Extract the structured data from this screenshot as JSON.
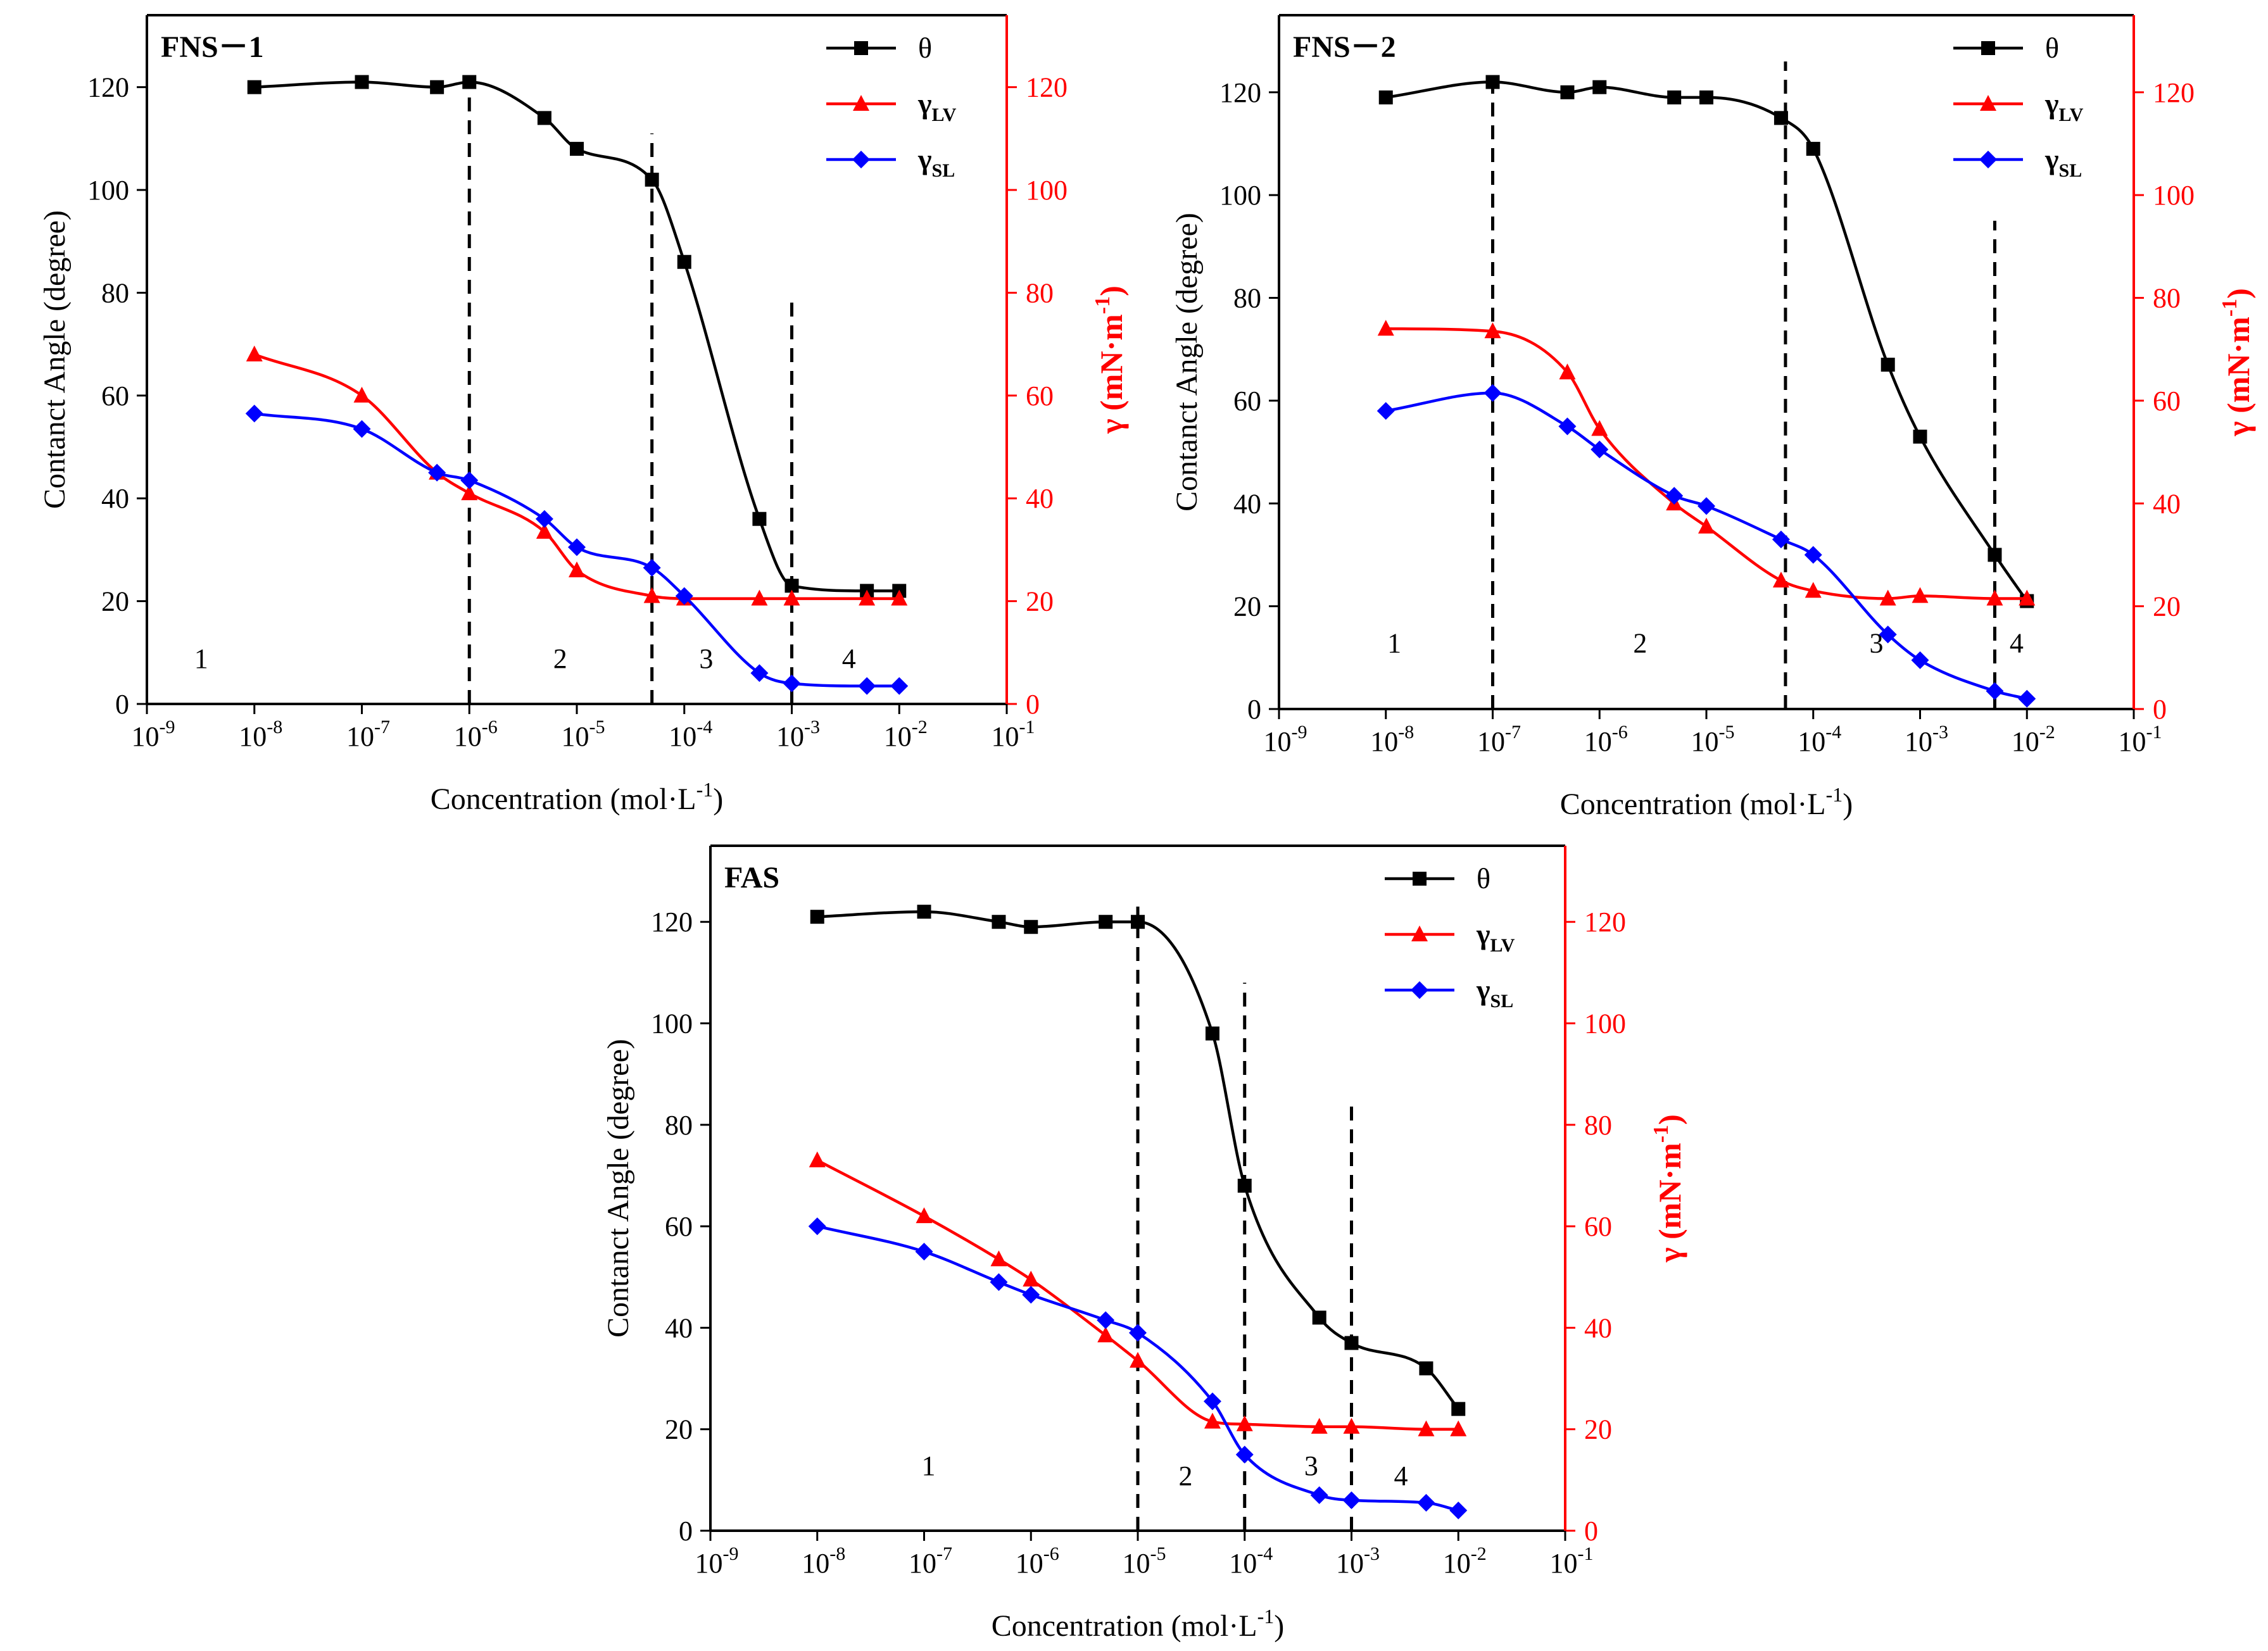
{
  "chart_data": [
    {
      "type": "line",
      "title": "FNS－1",
      "x_scale": "log10",
      "xlim_exp": [
        -9,
        -1
      ],
      "x_tick_base": "10",
      "x_tick_exponents": [
        "-9",
        "-8",
        "-7",
        "-6",
        "-5",
        "-4",
        "-3",
        "-2",
        "-1"
      ],
      "xlabel": "Concentration (mol·L",
      "xlabel_sup": "-1",
      "xlabel_close": ")",
      "ylabel_left": "Contanct Angle (degree)",
      "ylabel_right": "γ (mN·m",
      "ylabel_right_sup": "-1",
      "ylabel_right_close": ")",
      "ylim": [
        0,
        134
      ],
      "y_ticks": [
        0,
        20,
        40,
        60,
        80,
        100,
        120
      ],
      "legend": [
        {
          "key": "theta",
          "label": "θ",
          "sub": ""
        },
        {
          "key": "lv",
          "label": "γ",
          "sub": "LV"
        },
        {
          "key": "sl",
          "label": "γ",
          "sub": "SL"
        }
      ],
      "series": [
        {
          "key": "theta",
          "name": "θ",
          "color": "#000000",
          "marker": "square",
          "x": [
            1e-08,
            1e-07,
            5e-07,
            1e-06,
            5e-06,
            1e-05,
            5e-05,
            0.0001,
            0.0005,
            0.001,
            0.005,
            0.01
          ],
          "y": [
            120,
            121,
            120,
            121,
            114,
            108,
            102,
            86,
            36,
            23,
            22,
            22
          ]
        },
        {
          "key": "lv",
          "name": "γLV",
          "color": "#ff0000",
          "marker": "triangle",
          "x": [
            1e-08,
            1e-07,
            5e-07,
            1e-06,
            5e-06,
            1e-05,
            5e-05,
            0.0001,
            0.0005,
            0.001,
            0.005,
            0.01
          ],
          "y": [
            68,
            60,
            45,
            41,
            33.5,
            26,
            21,
            20.5,
            20.5,
            20.5,
            20.5,
            20.5
          ]
        },
        {
          "key": "sl",
          "name": "γSL",
          "color": "#0000ff",
          "marker": "diamond",
          "x": [
            1e-08,
            1e-07,
            5e-07,
            1e-06,
            5e-06,
            1e-05,
            5e-05,
            0.0001,
            0.0005,
            0.001,
            0.005,
            0.01
          ],
          "y": [
            56.5,
            53.5,
            45,
            43.5,
            36,
            30.5,
            26.5,
            21,
            6,
            4,
            3.5,
            3.5
          ]
        }
      ],
      "dividers": [
        {
          "x": 1e-06,
          "y_top": 120
        },
        {
          "x": 5e-05,
          "y_top": 111
        },
        {
          "x": 0.001,
          "y_top": 79
        }
      ],
      "regions": [
        {
          "label": "1",
          "x": 3.2e-09,
          "y": 7
        },
        {
          "label": "2",
          "x": 7e-06,
          "y": 7
        },
        {
          "label": "3",
          "x": 0.00016,
          "y": 7
        },
        {
          "label": "4",
          "x": 0.0034,
          "y": 7
        }
      ]
    },
    {
      "type": "line",
      "title": "FNS－2",
      "x_scale": "log10",
      "xlim_exp": [
        -9,
        -1
      ],
      "x_tick_base": "10",
      "x_tick_exponents": [
        "-9",
        "-8",
        "-7",
        "-6",
        "-5",
        "-4",
        "-3",
        "-2",
        "-1"
      ],
      "xlabel": "Concentration (mol·L",
      "xlabel_sup": "-1",
      "xlabel_close": ")",
      "ylabel_left": "Contanct Angle (degree)",
      "ylabel_right": "γ (mN·m",
      "ylabel_right_sup": "-1",
      "ylabel_right_close": ")",
      "ylim": [
        0,
        135
      ],
      "y_ticks": [
        0,
        20,
        40,
        60,
        80,
        100,
        120
      ],
      "legend": [
        {
          "key": "theta",
          "label": "θ",
          "sub": ""
        },
        {
          "key": "lv",
          "label": "γ",
          "sub": "LV"
        },
        {
          "key": "sl",
          "label": "γ",
          "sub": "SL"
        }
      ],
      "series": [
        {
          "key": "theta",
          "name": "θ",
          "color": "#000000",
          "marker": "square",
          "x": [
            1e-08,
            1e-07,
            5e-07,
            1e-06,
            5e-06,
            1e-05,
            5e-05,
            0.0001,
            0.0005,
            0.001,
            0.005,
            0.01
          ],
          "y": [
            119,
            122,
            120,
            121,
            119,
            119,
            115,
            109,
            67,
            53,
            30,
            21
          ]
        },
        {
          "key": "lv",
          "name": "γLV",
          "color": "#ff0000",
          "marker": "triangle",
          "x": [
            1e-08,
            1e-07,
            5e-07,
            1e-06,
            5e-06,
            1e-05,
            5e-05,
            0.0001,
            0.0005,
            0.001,
            0.005,
            0.01
          ],
          "y": [
            74,
            73.5,
            65.5,
            54.5,
            40,
            35.5,
            25,
            23,
            21.5,
            22,
            21.5,
            21.5
          ]
        },
        {
          "key": "sl",
          "name": "γSL",
          "color": "#0000ff",
          "marker": "diamond",
          "x": [
            1e-08,
            1e-07,
            5e-07,
            1e-06,
            5e-06,
            1e-05,
            5e-05,
            0.0001,
            0.0005,
            0.001,
            0.005,
            0.01
          ],
          "y": [
            58,
            61.5,
            55,
            50.5,
            41.5,
            39.5,
            33,
            30,
            14.5,
            9.5,
            3.5,
            2
          ]
        }
      ],
      "dividers": [
        {
          "x": 1e-07,
          "y_top": 122
        },
        {
          "x": 5.5e-05,
          "y_top": 126
        },
        {
          "x": 0.005,
          "y_top": 95
        }
      ],
      "regions": [
        {
          "label": "1",
          "x": 1.2e-08,
          "y": 11
        },
        {
          "label": "2",
          "x": 2.4e-06,
          "y": 11
        },
        {
          "label": "3",
          "x": 0.00039,
          "y": 11
        },
        {
          "label": "4",
          "x": 0.008,
          "y": 11
        }
      ]
    },
    {
      "type": "line",
      "title": "FAS",
      "x_scale": "log10",
      "xlim_exp": [
        -9,
        -1
      ],
      "x_tick_base": "10",
      "x_tick_exponents": [
        "-9",
        "-8",
        "-7",
        "-6",
        "-5",
        "-4",
        "-3",
        "-2",
        "-1"
      ],
      "xlabel": "Concentration (mol·L",
      "xlabel_sup": "-1",
      "xlabel_close": ")",
      "ylabel_left": "Contanct Angle (degree)",
      "ylabel_right": "γ (mN·m",
      "ylabel_right_sup": "-1",
      "ylabel_right_close": ")",
      "ylim": [
        0,
        135
      ],
      "y_ticks": [
        0,
        20,
        40,
        60,
        80,
        100,
        120
      ],
      "legend": [
        {
          "key": "theta",
          "label": "θ",
          "sub": ""
        },
        {
          "key": "lv",
          "label": "γ",
          "sub": "LV"
        },
        {
          "key": "sl",
          "label": "γ",
          "sub": "SL"
        }
      ],
      "series": [
        {
          "key": "theta",
          "name": "θ",
          "color": "#000000",
          "marker": "square",
          "x": [
            1e-08,
            1e-07,
            5e-07,
            1e-06,
            5e-06,
            1e-05,
            5e-05,
            0.0001,
            0.0005,
            0.001,
            0.005,
            0.01
          ],
          "y": [
            121,
            122,
            120,
            119,
            120,
            120,
            98,
            68,
            42,
            37,
            32,
            24
          ]
        },
        {
          "key": "lv",
          "name": "γLV",
          "color": "#ff0000",
          "marker": "triangle",
          "x": [
            1e-08,
            1e-07,
            5e-07,
            1e-06,
            5e-06,
            1e-05,
            5e-05,
            0.0001,
            0.0005,
            0.001,
            0.005,
            0.01
          ],
          "y": [
            73,
            62,
            53.5,
            49.5,
            38.5,
            33.5,
            21.5,
            21,
            20.5,
            20.5,
            20,
            20
          ]
        },
        {
          "key": "sl",
          "name": "γSL",
          "color": "#0000ff",
          "marker": "diamond",
          "x": [
            1e-08,
            1e-07,
            5e-07,
            1e-06,
            5e-06,
            1e-05,
            5e-05,
            0.0001,
            0.0005,
            0.001,
            0.005,
            0.01
          ],
          "y": [
            60,
            55,
            49,
            46.5,
            41.5,
            39,
            25.5,
            15,
            7,
            6,
            5.5,
            4
          ]
        }
      ],
      "dividers": [
        {
          "x": 1e-05,
          "y_top": 123
        },
        {
          "x": 0.0001,
          "y_top": 108
        },
        {
          "x": 0.001,
          "y_top": 85
        }
      ],
      "regions": [
        {
          "label": "1",
          "x": 1.1e-07,
          "y": 11
        },
        {
          "label": "2",
          "x": 2.8e-05,
          "y": 9
        },
        {
          "label": "3",
          "x": 0.00042,
          "y": 11
        },
        {
          "label": "4",
          "x": 0.0029,
          "y": 9
        }
      ]
    }
  ]
}
